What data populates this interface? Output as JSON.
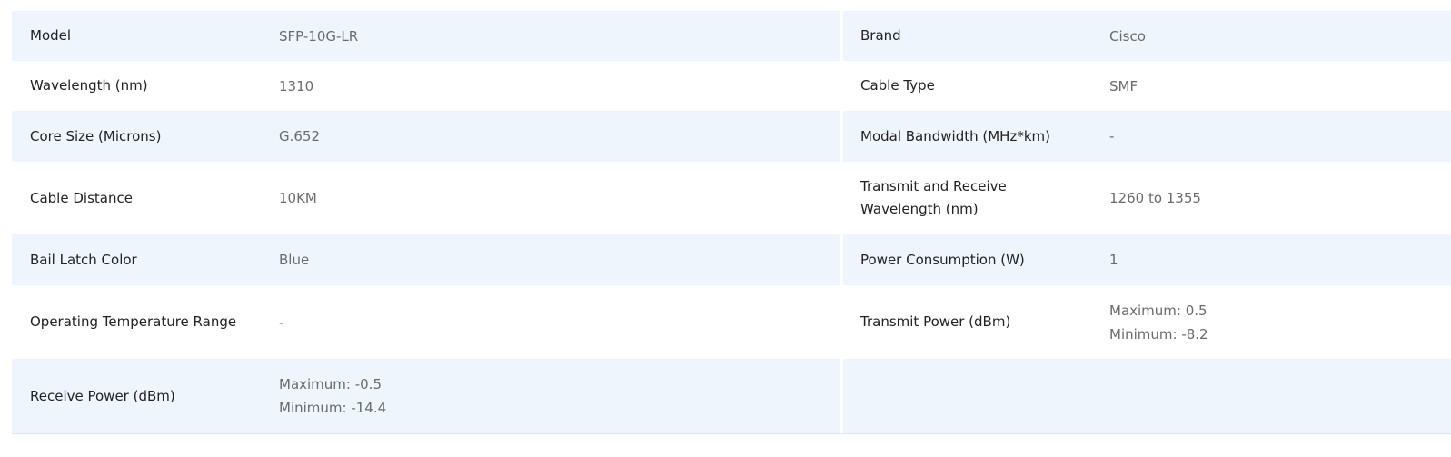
{
  "rows": [
    {
      "l_label": "Model",
      "l_value": "SFP-10G-LR",
      "r_label": "Brand",
      "r_value": "Cisco"
    },
    {
      "l_label": "Wavelength (nm)",
      "l_value": "1310",
      "r_label": "Cable Type",
      "r_value": "SMF"
    },
    {
      "l_label": "Core Size (Microns)",
      "l_value": "G.652",
      "r_label": "Modal Bandwidth (MHz*km)",
      "r_value": "-"
    },
    {
      "l_label": "Cable Distance",
      "l_value": "10KM",
      "r_label": "Transmit and Receive Wavelength (nm)",
      "r_value": "1260 to 1355"
    },
    {
      "l_label": "Bail Latch Color",
      "l_value": "Blue",
      "r_label": "Power Consumption (W)",
      "r_value": "1"
    },
    {
      "l_label": "Operating Temperature Range",
      "l_value": "-",
      "r_label": "Transmit Power (dBm)",
      "r_value_lines": [
        "Maximum: 0.5",
        "Minimum: -8.2"
      ]
    },
    {
      "l_label": "Receive Power (dBm)",
      "l_value_lines": [
        "Maximum: -0.5",
        "Minimum: -14.4"
      ],
      "r_label": "",
      "r_value": ""
    }
  ]
}
